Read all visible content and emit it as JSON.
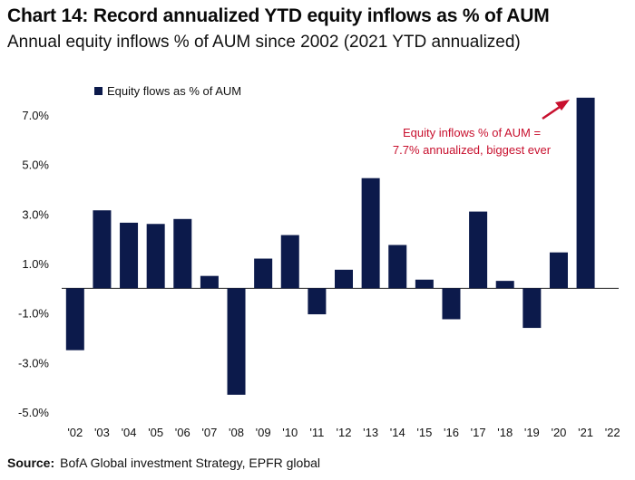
{
  "header": {
    "title": "Chart 14: Record annualized YTD equity inflows as % of AUM",
    "subtitle": "Annual equity inflows % of AUM since 2002 (2021 YTD annualized)"
  },
  "footer": {
    "source_label": "Source:",
    "source_text": "BofA Global investment Strategy, EPFR global"
  },
  "colors": {
    "bar": "#0c1a4b",
    "annotation": "#c8102e",
    "text": "#111111"
  },
  "chart_data": {
    "type": "bar",
    "title": "Chart 14: Record annualized YTD equity inflows as % of AUM",
    "subtitle": "Annual equity inflows % of AUM since 2002 (2021 YTD annualized)",
    "categories": [
      "'02",
      "'03",
      "'04",
      "'05",
      "'06",
      "'07",
      "'08",
      "'09",
      "'10",
      "'11",
      "'12",
      "'13",
      "'14",
      "'15",
      "'16",
      "'17",
      "'18",
      "'19",
      "'20",
      "'21",
      "'22"
    ],
    "series": [
      {
        "name": "Equity flows as % of AUM",
        "values": [
          -2.5,
          3.15,
          2.65,
          2.6,
          2.8,
          0.5,
          -4.3,
          1.2,
          2.15,
          -1.05,
          0.75,
          4.45,
          1.75,
          0.35,
          -1.25,
          3.1,
          0.3,
          -1.6,
          1.45,
          7.7,
          null
        ]
      }
    ],
    "yticks": [
      -5,
      -3,
      -1,
      1,
      3,
      5,
      7
    ],
    "ytick_labels": [
      "-5.0%",
      "-3.0%",
      "-1.0%",
      "1.0%",
      "3.0%",
      "5.0%",
      "7.0%"
    ],
    "ylim": [
      -5.2,
      8.0
    ],
    "xlabel": "",
    "ylabel": "",
    "grid": false,
    "legend": {
      "position": "top-left",
      "label": "Equity flows as % of AUM"
    },
    "annotation": {
      "lines": [
        "Equity inflows % of AUM =",
        "7.7% annualized, biggest ever"
      ],
      "target_category": "'21"
    }
  }
}
